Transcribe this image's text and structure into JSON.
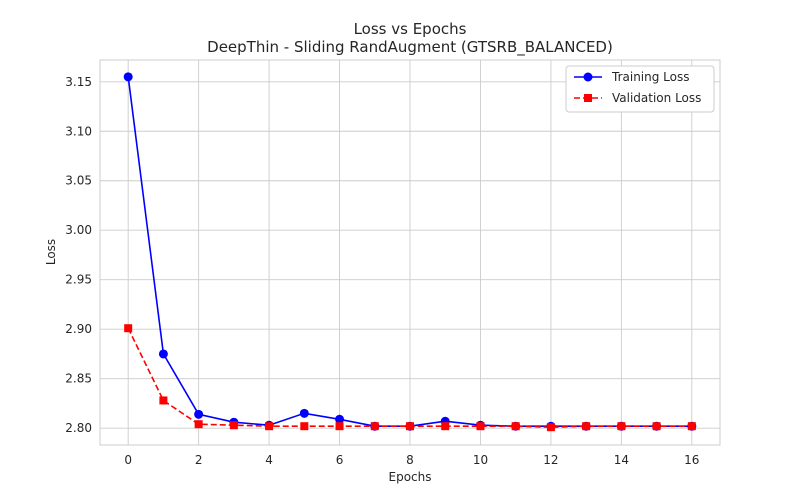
{
  "chart_data": {
    "type": "line",
    "title": "Loss vs Epochs",
    "subtitle": "DeepThin - Sliding RandAugment (GTSRB_BALANCED)",
    "xlabel": "Epochs",
    "ylabel": "Loss",
    "x": [
      0,
      1,
      2,
      3,
      4,
      5,
      6,
      7,
      8,
      9,
      10,
      11,
      12,
      13,
      14,
      15,
      16
    ],
    "xlim": [
      -0.8,
      16.8
    ],
    "ylim": [
      2.783,
      3.172
    ],
    "xticks": [
      0,
      2,
      4,
      6,
      8,
      10,
      12,
      14,
      16
    ],
    "yticks": [
      2.8,
      2.85,
      2.9,
      2.95,
      3.0,
      3.05,
      3.1,
      3.15
    ],
    "grid": true,
    "legend_position": "top-right",
    "series": [
      {
        "name": "Training Loss",
        "color": "#0000ff",
        "marker": "circle",
        "linestyle": "solid",
        "values": [
          3.155,
          2.875,
          2.814,
          2.806,
          2.803,
          2.815,
          2.809,
          2.802,
          2.802,
          2.807,
          2.803,
          2.802,
          2.802,
          2.802,
          2.802,
          2.802,
          2.802
        ]
      },
      {
        "name": "Validation Loss",
        "color": "#ff0000",
        "marker": "square",
        "linestyle": "dashed",
        "values": [
          2.901,
          2.828,
          2.804,
          2.803,
          2.802,
          2.802,
          2.802,
          2.802,
          2.802,
          2.802,
          2.802,
          2.802,
          2.801,
          2.802,
          2.802,
          2.802,
          2.802
        ]
      }
    ]
  }
}
